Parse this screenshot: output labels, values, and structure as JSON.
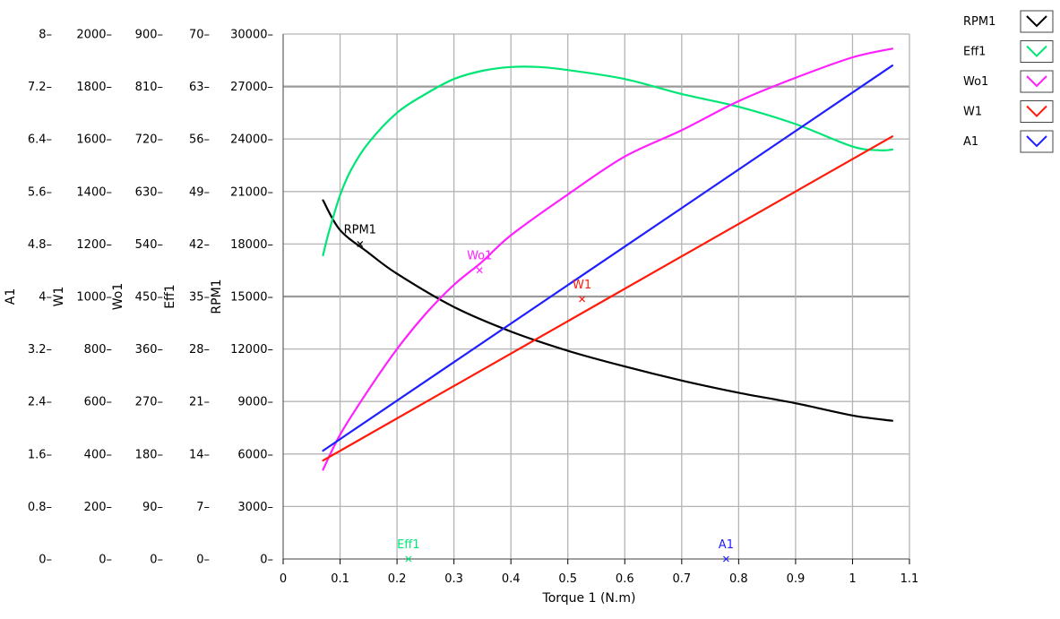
{
  "chart_data": {
    "type": "line",
    "xlabel": "Torque 1 (N.m)",
    "x_axis": {
      "min": 0,
      "max": 1.1,
      "ticks": [
        0,
        0.1,
        0.2,
        0.3,
        0.4,
        0.5,
        0.6,
        0.7,
        0.8,
        0.9,
        1,
        1.1
      ],
      "tick_labels": [
        "0",
        "0.1",
        "0.2",
        "0.3",
        "0.4",
        "0.5",
        "0.6",
        "0.7",
        "0.8",
        "0.9",
        "1",
        "1.1"
      ]
    },
    "y_axes": [
      {
        "name": "A1",
        "min": 0,
        "max": 8,
        "tick_labels": [
          "0",
          "0.8",
          "1.6",
          "2.4",
          "3.2",
          "4",
          "4.8",
          "5.6",
          "6.4",
          "7.2",
          "8"
        ]
      },
      {
        "name": "W1",
        "min": 0,
        "max": 2000,
        "tick_labels": [
          "0",
          "200",
          "400",
          "600",
          "800",
          "1000",
          "1200",
          "1400",
          "1600",
          "1800",
          "2000"
        ]
      },
      {
        "name": "Wo1",
        "min": 0,
        "max": 900,
        "tick_labels": [
          "0",
          "90",
          "180",
          "270",
          "360",
          "450",
          "540",
          "630",
          "720",
          "810",
          "900"
        ]
      },
      {
        "name": "Eff1",
        "min": 0,
        "max": 70,
        "tick_labels": [
          "0",
          "7",
          "14",
          "21",
          "28",
          "35",
          "42",
          "49",
          "56",
          "63",
          "70"
        ]
      },
      {
        "name": "RPM1",
        "min": 0,
        "max": 30000,
        "tick_labels": [
          "0",
          "3000",
          "6000",
          "9000",
          "12000",
          "15000",
          "18000",
          "21000",
          "24000",
          "27000",
          "30000"
        ]
      }
    ],
    "grid": true,
    "legend_position": "top-right",
    "series": [
      {
        "name": "RPM1",
        "axis": "RPM1",
        "color": "#000000",
        "x": [
          0.07,
          0.1,
          0.15,
          0.2,
          0.3,
          0.4,
          0.5,
          0.6,
          0.7,
          0.8,
          0.9,
          1.0,
          1.07
        ],
        "y": [
          20500,
          18800,
          17500,
          16300,
          14400,
          13000,
          11900,
          11000,
          10200,
          9500,
          8900,
          8200,
          7900
        ]
      },
      {
        "name": "Eff1",
        "axis": "Eff1",
        "color": "#00e676",
        "x": [
          0.07,
          0.08,
          0.1,
          0.12,
          0.15,
          0.2,
          0.25,
          0.3,
          0.35,
          0.4,
          0.45,
          0.5,
          0.6,
          0.7,
          0.8,
          0.9,
          1.0,
          1.05,
          1.07
        ],
        "y": [
          40.5,
          43.5,
          48.5,
          52.0,
          55.5,
          59.5,
          62.0,
          64.0,
          65.1,
          65.6,
          65.6,
          65.2,
          64.0,
          62.0,
          60.3,
          58.0,
          55.0,
          54.5,
          54.6
        ]
      },
      {
        "name": "Wo1",
        "axis": "Wo1",
        "color": "#ff1fff",
        "x": [
          0.07,
          0.1,
          0.15,
          0.2,
          0.25,
          0.3,
          0.35,
          0.4,
          0.5,
          0.6,
          0.7,
          0.8,
          0.9,
          1.0,
          1.07
        ],
        "y": [
          153,
          213,
          290,
          360,
          420,
          470,
          510,
          555,
          625,
          690,
          735,
          785,
          825,
          860,
          875
        ]
      },
      {
        "name": "W1",
        "axis": "W1",
        "color": "#ff1a0a",
        "x": [
          0.07,
          1.07
        ],
        "y": [
          375,
          1610
        ]
      },
      {
        "name": "A1",
        "axis": "A1",
        "color": "#2020ff",
        "x": [
          0.07,
          1.07
        ],
        "y": [
          1.65,
          7.52
        ]
      }
    ],
    "cursors": [
      {
        "label": "RPM1",
        "series": "RPM1",
        "x": 0.135,
        "y": 18000,
        "color": "#000000"
      },
      {
        "label": "Wo1",
        "series": "Wo1",
        "x": 0.345,
        "y": 495,
        "color": "#ff1fff"
      },
      {
        "label": "W1",
        "series": "W1",
        "x": 0.525,
        "y": 990,
        "color": "#ff1a0a"
      },
      {
        "label": "Eff1",
        "series": "Eff1",
        "x": 0.22,
        "y": 0,
        "color": "#00e676"
      },
      {
        "label": "A1",
        "series": "A1",
        "x": 0.778,
        "y": 0,
        "color": "#2020ff"
      }
    ]
  }
}
